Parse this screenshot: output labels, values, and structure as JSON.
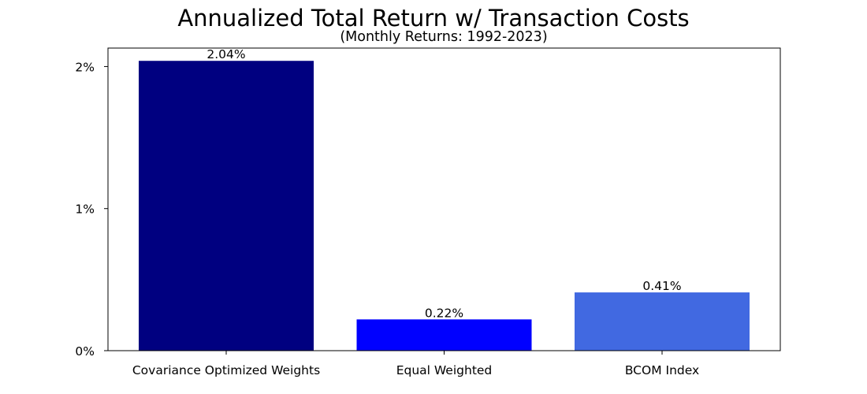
{
  "chart_data": {
    "type": "bar",
    "title": "Annualized Total Return w/ Transaction Costs",
    "subtitle": "(Monthly Returns: 1992-2023)",
    "xlabel": "",
    "ylabel": "",
    "categories": [
      "Covariance Optimized Weights",
      "Equal Weighted",
      "BCOM Index"
    ],
    "values": [
      2.04,
      0.22,
      0.41
    ],
    "value_labels": [
      "2.04%",
      "0.22%",
      "0.41%"
    ],
    "colors": [
      "#000080",
      "#0000ff",
      "#4169e1"
    ],
    "ylim": [
      0,
      2.13
    ],
    "yticks": [
      0,
      1,
      2
    ],
    "ytick_labels": [
      "0%",
      "1%",
      "2%"
    ],
    "grid": false,
    "legend": "none"
  }
}
